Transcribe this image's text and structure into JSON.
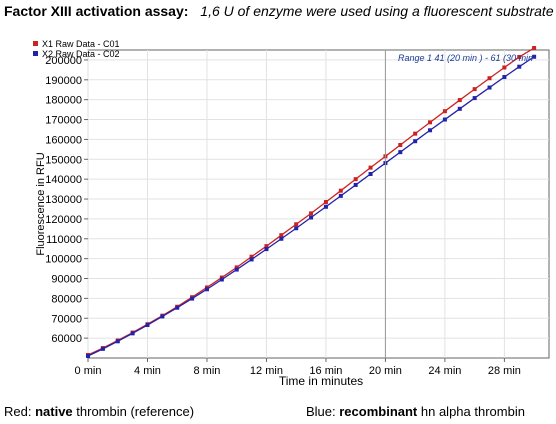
{
  "header": {
    "title": "Factor XIII activation assay:",
    "subtitle": "1,6 U of enzyme were used using a fluorescent substrate"
  },
  "footer": {
    "left": {
      "prefix": "Red: ",
      "bold": "native",
      "suffix": " thrombin (reference)"
    },
    "right": {
      "prefix": "Blue: ",
      "bold": "recombinant",
      "suffix": " hn alpha thrombin"
    }
  },
  "chart_data": {
    "type": "line",
    "title": "",
    "xlabel": "Time in minutes",
    "ylabel": "Fluorescence in RFU",
    "xlim": [
      0,
      31
    ],
    "ylim": [
      50000,
      205000
    ],
    "x_ticks": [
      0,
      4,
      8,
      12,
      16,
      20,
      24,
      28
    ],
    "x_tick_labels": [
      "0 min",
      "4 min",
      "8 min",
      "12 min",
      "16 min",
      "20 min",
      "24 min",
      "28 min"
    ],
    "y_ticks": [
      60000,
      70000,
      80000,
      90000,
      100000,
      110000,
      120000,
      130000,
      140000,
      150000,
      160000,
      170000,
      180000,
      190000,
      200000
    ],
    "y_tick_labels": [
      "60000",
      "70000",
      "80000",
      "90000",
      "100000",
      "110000",
      "120000",
      "130000",
      "140000",
      "150000",
      "160000",
      "170000",
      "180000",
      "190000",
      "200000"
    ],
    "grid": {
      "x": true,
      "y": true
    },
    "legend_position": "top-left",
    "range_annotation": {
      "text": "Range 1 41 (20 min ) - 61 (30 min",
      "x_start": 20
    },
    "series": [
      {
        "name": "X1 Raw Data - C01",
        "color": "#cc2222",
        "x": [
          0,
          1,
          2,
          3,
          4,
          5,
          6,
          7,
          8,
          9,
          10,
          11,
          12,
          13,
          14,
          15,
          16,
          17,
          18,
          19,
          20,
          21,
          22,
          23,
          24,
          25,
          26,
          27,
          28,
          29,
          30
        ],
        "y": [
          51500,
          55000,
          58800,
          62800,
          67000,
          71300,
          75800,
          80600,
          85500,
          90500,
          95600,
          101000,
          106300,
          111800,
          117300,
          122800,
          128500,
          134200,
          140000,
          145800,
          151500,
          157200,
          162900,
          168600,
          174200,
          179800,
          185300,
          190800,
          196200,
          201500,
          206000
        ]
      },
      {
        "name": "X2 Raw Data - C02",
        "color": "#2222aa",
        "x": [
          0,
          1,
          2,
          3,
          4,
          5,
          6,
          7,
          8,
          9,
          10,
          11,
          12,
          13,
          14,
          15,
          16,
          17,
          18,
          19,
          20,
          21,
          22,
          23,
          24,
          25,
          26,
          27,
          28,
          29,
          30
        ],
        "y": [
          51000,
          54600,
          58400,
          62400,
          66600,
          70900,
          75300,
          79900,
          84600,
          89500,
          94500,
          99600,
          104800,
          110000,
          115300,
          120700,
          126100,
          131600,
          137100,
          142600,
          148100,
          153600,
          159100,
          164600,
          170000,
          175400,
          180800,
          186100,
          191400,
          196600,
          201600
        ]
      }
    ]
  }
}
